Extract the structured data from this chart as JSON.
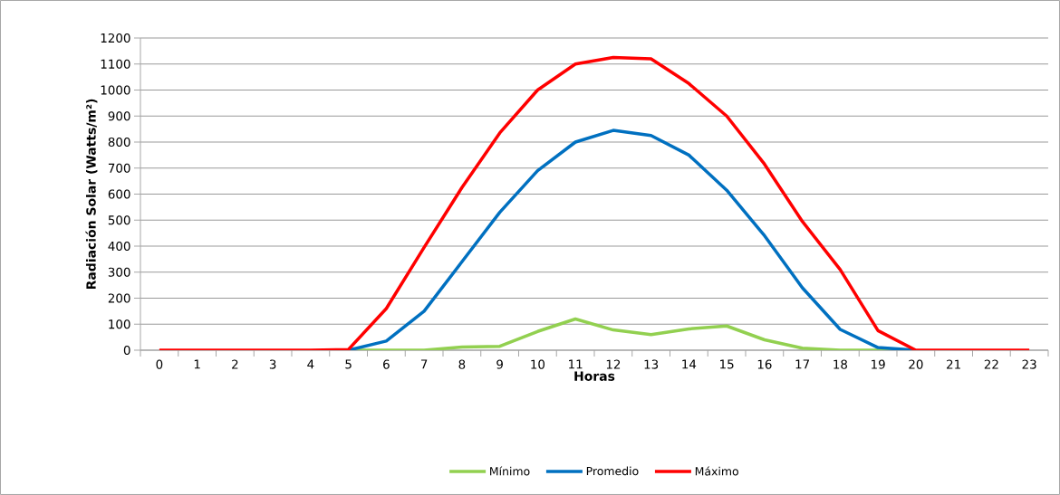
{
  "chart_data": {
    "type": "line",
    "xlabel": "Horas",
    "ylabel": "Radiación Solar (Watts/m²)",
    "categories": [
      "0",
      "1",
      "2",
      "3",
      "4",
      "5",
      "6",
      "7",
      "8",
      "9",
      "10",
      "11",
      "12",
      "13",
      "14",
      "15",
      "16",
      "17",
      "18",
      "19",
      "20",
      "21",
      "22",
      "23"
    ],
    "series": [
      {
        "name": "Mínimo",
        "color": "#92d050",
        "values": [
          null,
          null,
          null,
          null,
          null,
          0,
          0,
          0,
          12,
          15,
          72,
          120,
          78,
          60,
          82,
          93,
          40,
          8,
          0,
          0,
          0,
          null,
          null,
          null
        ]
      },
      {
        "name": "Promedio",
        "color": "#0070c0",
        "values": [
          null,
          null,
          null,
          null,
          null,
          0,
          35,
          150,
          340,
          530,
          690,
          800,
          845,
          825,
          750,
          615,
          440,
          240,
          80,
          10,
          0,
          null,
          null,
          null
        ]
      },
      {
        "name": "Máximo",
        "color": "#ff0000",
        "values": [
          0,
          0,
          0,
          0,
          0,
          3,
          160,
          395,
          625,
          835,
          1000,
          1100,
          1125,
          1120,
          1025,
          900,
          715,
          495,
          310,
          75,
          0,
          0,
          0,
          0
        ]
      }
    ],
    "ylim": [
      0,
      1200
    ],
    "yticks": [
      0,
      100,
      200,
      300,
      400,
      500,
      600,
      700,
      800,
      900,
      1000,
      1100,
      1200
    ],
    "grid": "y",
    "legend": "bottom"
  }
}
